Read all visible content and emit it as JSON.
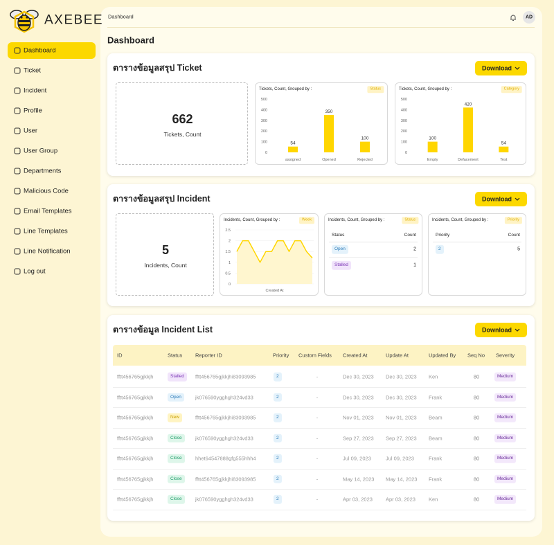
{
  "brand": "AXEBEE",
  "sidebar": {
    "items": [
      "Dashboard",
      "Ticket",
      "Incident",
      "Profile",
      "User",
      "User Group",
      "Departments",
      "Malicious Code",
      "Email Templates",
      "Line Templates",
      "Line Notification",
      "Log out"
    ],
    "active": 0
  },
  "header": {
    "breadcrumb": "Dashboard",
    "avatar": "AD"
  },
  "page_title": "Dashboard",
  "badge_colors": {
    "Stalled": {
      "color": "#7b35b5",
      "bg": "#f1e4fb"
    },
    "Open": {
      "color": "#2a7ab8",
      "bg": "#e4f2fb"
    },
    "New": {
      "color": "#c9a000",
      "bg": "#fff4c2"
    },
    "Close": {
      "color": "#1f9d6a",
      "bg": "#def6ea"
    },
    "priority": {
      "color": "#2a7ab8",
      "bg": "#e4f2fb"
    },
    "severity": {
      "color": "#6a2c9a",
      "bg": "#f3e8fb"
    }
  },
  "ticket_summary": {
    "title": "ตารางข้อมูลสรุป Ticket",
    "button": "Download",
    "total": {
      "value": 662,
      "label": "Tickets, Count"
    },
    "charts": [
      {
        "type": "bar",
        "title": "Tickets, Count, Grouped by :",
        "group_by": "Status",
        "categories": [
          "assigned",
          "Opened",
          "Rejected"
        ],
        "values": [
          54,
          350,
          100
        ],
        "ylim": [
          0,
          500
        ],
        "yticks": [
          0,
          100,
          200,
          300,
          400,
          500
        ],
        "color": "#ffd600"
      },
      {
        "type": "bar",
        "title": "Tickets, Count, Grouped by :",
        "group_by": "Category",
        "categories": [
          "Empty",
          "Defacement",
          "Test"
        ],
        "values": [
          100,
          420,
          54
        ],
        "ylim": [
          0,
          500
        ],
        "yticks": [
          0,
          100,
          200,
          300,
          400,
          500
        ],
        "color": "#ffd600"
      }
    ]
  },
  "incident_summary": {
    "title": "ตารางข้อมูลสรุป Incident",
    "button": "Download",
    "total": {
      "value": 5,
      "label": "Incidents, Count"
    },
    "chart": {
      "type": "line",
      "title": "Incidents, Count, Grouped by :",
      "group_by": "Week",
      "x_label": "Created At",
      "values": [
        1.5,
        2,
        2,
        1.5,
        1,
        1.5,
        1.5,
        2,
        2,
        1.5,
        2,
        2,
        1.5,
        1.2
      ],
      "ylim": [
        0,
        2.5
      ],
      "yticks": [
        0,
        0.5,
        1,
        1.5,
        2,
        2.5
      ],
      "color": "#ffd600",
      "grid": true
    },
    "tables": [
      {
        "title": "Incidents, Count, Grouped by :",
        "group_by": "Status",
        "columns": [
          "Status",
          "Count"
        ],
        "rows": [
          [
            "Open",
            2
          ],
          [
            "Stalled",
            1
          ]
        ]
      },
      {
        "title": "Incidents, Count, Grouped by :",
        "group_by": "Priority",
        "columns": [
          "Priority",
          "Count"
        ],
        "rows": [
          [
            2,
            5
          ]
        ]
      }
    ]
  },
  "incident_list": {
    "title": "ตารางข้อมูล Incident List",
    "button": "Download",
    "columns": [
      "ID",
      "Status",
      "Reporter ID",
      "Priority",
      "Custom Fields",
      "Created At",
      "Update At",
      "Updated By",
      "Seq No",
      "Severity"
    ],
    "rows": [
      [
        "fftt456765gjkkjh",
        "Stalled",
        "fftt456765gjkkjhi83093985",
        2,
        "-",
        "Dec 30, 2023",
        "Dec 30, 2023",
        "Ken",
        80,
        "Medium"
      ],
      [
        "fftt456765gjkkjh",
        "Open",
        "jk076590ygghgh324vd33",
        2,
        "-",
        "Dec 30, 2023",
        "Dec 30, 2023",
        "Frank",
        80,
        "Medium"
      ],
      [
        "fftt456765gjkkjh",
        "New",
        "fftt456765gjkkjhi83093985",
        2,
        "-",
        "Nov 01, 2023",
        "Nov 01, 2023",
        "Beam",
        80,
        "Medium"
      ],
      [
        "fftt456765gjkkjh",
        "Close",
        "jk076590ygghgh324vd33",
        2,
        "-",
        "Sep 27, 2023",
        "Sep 27, 2023",
        "Beam",
        80,
        "Medium"
      ],
      [
        "fftt456765gjkkjh",
        "Close",
        "hhet64547888gfg555hhh4",
        2,
        "-",
        "Jul 09, 2023",
        "Jul 09, 2023",
        "Frank",
        80,
        "Medium"
      ],
      [
        "fftt456765gjkkjh",
        "Close",
        "fftt456765gjkkjhi83093985",
        2,
        "-",
        "May 14, 2023",
        "May 14, 2023",
        "Frank",
        80,
        "Medium"
      ],
      [
        "fftt456765gjkkjh",
        "Close",
        "jk076590ygghgh324vd33",
        2,
        "-",
        "Apr 03, 2023",
        "Apr 03, 2023",
        "Ken",
        80,
        "Medium"
      ]
    ]
  }
}
